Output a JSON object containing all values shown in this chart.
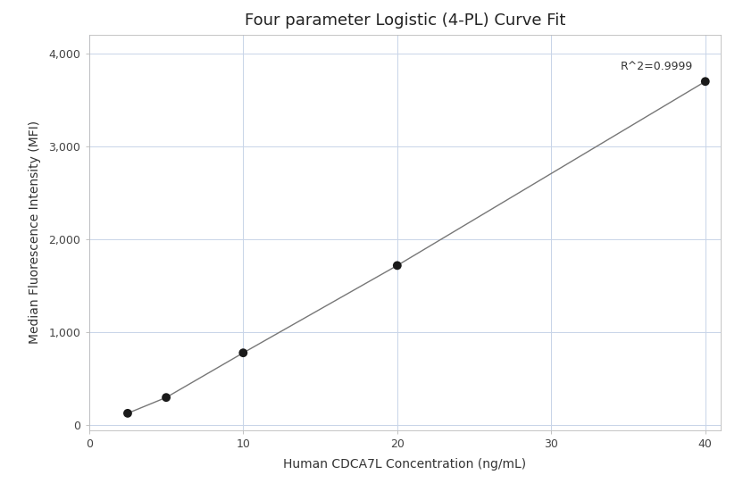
{
  "title": "Four parameter Logistic (4-PL) Curve Fit",
  "xlabel": "Human CDCA7L Concentration (ng/mL)",
  "ylabel": "Median Fluorescence Intensity (MFI)",
  "x_data": [
    2.5,
    5,
    10,
    20,
    40
  ],
  "y_data": [
    130,
    300,
    780,
    1720,
    3700
  ],
  "xlim": [
    0,
    41
  ],
  "ylim": [
    -50,
    4200
  ],
  "xticks": [
    0,
    10,
    20,
    30,
    40
  ],
  "yticks": [
    0,
    1000,
    2000,
    3000,
    4000
  ],
  "ytick_labels": [
    "0",
    "1,000",
    "2,000",
    "3,000",
    "4,000"
  ],
  "r_squared": "R^2=0.9999",
  "dot_color": "#1a1a1a",
  "line_color": "#777777",
  "grid_color": "#c8d4e8",
  "background_color": "#ffffff",
  "title_fontsize": 13,
  "label_fontsize": 10,
  "tick_fontsize": 9,
  "annotation_fontsize": 9,
  "dot_size": 50
}
